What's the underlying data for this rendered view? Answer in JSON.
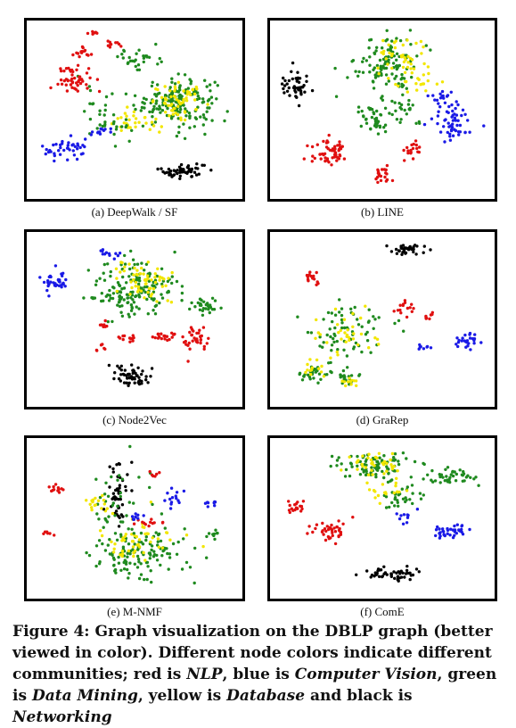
{
  "figure": {
    "caption_prefix": "Figure 4: ",
    "caption_main": "Graph visualization on the DBLP graph (better viewed in color). Different node colors indicate different communities; ",
    "legend_text": [
      {
        "text": "red is ",
        "italic": false
      },
      {
        "text": "NLP",
        "italic": true
      },
      {
        "text": ", blue is ",
        "italic": false
      },
      {
        "text": "Computer Vision",
        "italic": true
      },
      {
        "text": ", green is ",
        "italic": false
      },
      {
        "text": "Data Mining",
        "italic": true
      },
      {
        "text": ", yellow is ",
        "italic": false
      },
      {
        "text": "Database",
        "italic": true
      },
      {
        "text": " and black is ",
        "italic": false
      },
      {
        "text": "Networking",
        "italic": true
      }
    ]
  },
  "colors": {
    "NLP": "#e01010",
    "Computer Vision": "#1a1ae6",
    "Data Mining": "#1f8a1f",
    "Database": "#f2e600",
    "Networking": "#000000"
  },
  "chart_data": [
    {
      "type": "scatter",
      "caption": "(a) DeepWalk / SF",
      "xlim": [
        0,
        100
      ],
      "ylim": [
        0,
        100
      ],
      "clusters": [
        {
          "community": "Data Mining",
          "cx": 70,
          "cy": 55,
          "sx": 12,
          "sy": 9,
          "n": 170
        },
        {
          "community": "Database",
          "cx": 72,
          "cy": 55,
          "sx": 8,
          "sy": 6,
          "n": 60
        },
        {
          "community": "Database",
          "cx": 50,
          "cy": 42,
          "sx": 8,
          "sy": 4,
          "n": 30
        },
        {
          "community": "Data Mining",
          "cx": 52,
          "cy": 80,
          "sx": 6,
          "sy": 5,
          "n": 30
        },
        {
          "community": "Data Mining",
          "cx": 38,
          "cy": 48,
          "sx": 10,
          "sy": 10,
          "n": 35
        },
        {
          "community": "NLP",
          "cx": 21,
          "cy": 68,
          "sx": 5,
          "sy": 5,
          "n": 50
        },
        {
          "community": "NLP",
          "cx": 24,
          "cy": 83,
          "sx": 3,
          "sy": 2,
          "n": 15
        },
        {
          "community": "NLP",
          "cx": 40,
          "cy": 88,
          "sx": 3,
          "sy": 1.5,
          "n": 10
        },
        {
          "community": "NLP",
          "cx": 30,
          "cy": 95,
          "sx": 2,
          "sy": 1,
          "n": 6
        },
        {
          "community": "Computer Vision",
          "cx": 18,
          "cy": 27,
          "sx": 8,
          "sy": 4,
          "n": 40
        },
        {
          "community": "Computer Vision",
          "cx": 32,
          "cy": 37,
          "sx": 3,
          "sy": 2,
          "n": 12
        },
        {
          "community": "Networking",
          "cx": 73,
          "cy": 14,
          "sx": 7,
          "sy": 3,
          "n": 55
        }
      ]
    },
    {
      "type": "scatter",
      "caption": "(b) LINE",
      "xlim": [
        0,
        100
      ],
      "ylim": [
        0,
        100
      ],
      "clusters": [
        {
          "community": "Data Mining",
          "cx": 52,
          "cy": 78,
          "sx": 9,
          "sy": 11,
          "n": 110
        },
        {
          "community": "Database",
          "cx": 58,
          "cy": 80,
          "sx": 8,
          "sy": 9,
          "n": 40
        },
        {
          "community": "Data Mining",
          "cx": 46,
          "cy": 45,
          "sx": 4,
          "sy": 6,
          "n": 40
        },
        {
          "community": "Data Mining",
          "cx": 60,
          "cy": 52,
          "sx": 6,
          "sy": 8,
          "n": 25
        },
        {
          "community": "Database",
          "cx": 68,
          "cy": 68,
          "sx": 6,
          "sy": 6,
          "n": 20
        },
        {
          "community": "Computer Vision",
          "cx": 82,
          "cy": 42,
          "sx": 7,
          "sy": 8,
          "n": 55
        },
        {
          "community": "Computer Vision",
          "cx": 76,
          "cy": 58,
          "sx": 3,
          "sy": 3,
          "n": 15
        },
        {
          "community": "NLP",
          "cx": 26,
          "cy": 25,
          "sx": 5,
          "sy": 5,
          "n": 55
        },
        {
          "community": "NLP",
          "cx": 50,
          "cy": 12,
          "sx": 3,
          "sy": 2.5,
          "n": 22
        },
        {
          "community": "NLP",
          "cx": 64,
          "cy": 26,
          "sx": 3,
          "sy": 3,
          "n": 18
        },
        {
          "community": "Networking",
          "cx": 10,
          "cy": 65,
          "sx": 4,
          "sy": 5,
          "n": 45
        }
      ]
    },
    {
      "type": "scatter",
      "caption": "(c) Node2Vec",
      "xlim": [
        0,
        100
      ],
      "ylim": [
        0,
        100
      ],
      "clusters": [
        {
          "community": "Data Mining",
          "cx": 50,
          "cy": 68,
          "sx": 13,
          "sy": 11,
          "n": 170
        },
        {
          "community": "Database",
          "cx": 54,
          "cy": 72,
          "sx": 9,
          "sy": 8,
          "n": 60
        },
        {
          "community": "Data Mining",
          "cx": 85,
          "cy": 58,
          "sx": 4,
          "sy": 3,
          "n": 30
        },
        {
          "community": "NLP",
          "cx": 80,
          "cy": 38,
          "sx": 5,
          "sy": 5,
          "n": 35
        },
        {
          "community": "NLP",
          "cx": 64,
          "cy": 40,
          "sx": 3,
          "sy": 2,
          "n": 20
        },
        {
          "community": "NLP",
          "cx": 47,
          "cy": 39,
          "sx": 2.5,
          "sy": 1.5,
          "n": 12
        },
        {
          "community": "NLP",
          "cx": 35,
          "cy": 46,
          "sx": 2,
          "sy": 2,
          "n": 8
        },
        {
          "community": "NLP",
          "cx": 33,
          "cy": 33,
          "sx": 2,
          "sy": 1.5,
          "n": 7
        },
        {
          "community": "Computer Vision",
          "cx": 12,
          "cy": 72,
          "sx": 5,
          "sy": 4,
          "n": 35
        },
        {
          "community": "Computer Vision",
          "cx": 38,
          "cy": 90,
          "sx": 3,
          "sy": 2,
          "n": 12
        },
        {
          "community": "Networking",
          "cx": 48,
          "cy": 16,
          "sx": 6,
          "sy": 4,
          "n": 55
        }
      ]
    },
    {
      "type": "scatter",
      "caption": "(d) GraRep",
      "xlim": [
        0,
        100
      ],
      "ylim": [
        0,
        100
      ],
      "clusters": [
        {
          "community": "Networking",
          "cx": 60,
          "cy": 92,
          "sx": 6,
          "sy": 2,
          "n": 35
        },
        {
          "community": "Data Mining",
          "cx": 33,
          "cy": 42,
          "sx": 12,
          "sy": 12,
          "n": 70
        },
        {
          "community": "Database",
          "cx": 35,
          "cy": 40,
          "sx": 10,
          "sy": 10,
          "n": 35
        },
        {
          "community": "Data Mining",
          "cx": 18,
          "cy": 17,
          "sx": 4,
          "sy": 3,
          "n": 30
        },
        {
          "community": "Database",
          "cx": 18,
          "cy": 20,
          "sx": 4,
          "sy": 3,
          "n": 12
        },
        {
          "community": "Data Mining",
          "cx": 34,
          "cy": 15,
          "sx": 3,
          "sy": 3,
          "n": 20
        },
        {
          "community": "Database",
          "cx": 34,
          "cy": 12,
          "sx": 2,
          "sy": 2,
          "n": 10
        },
        {
          "community": "NLP",
          "cx": 60,
          "cy": 57,
          "sx": 3,
          "sy": 3,
          "n": 15
        },
        {
          "community": "NLP",
          "cx": 72,
          "cy": 52,
          "sx": 2,
          "sy": 2,
          "n": 8
        },
        {
          "community": "NLP",
          "cx": 18,
          "cy": 75,
          "sx": 3,
          "sy": 4,
          "n": 14
        },
        {
          "community": "Computer Vision",
          "cx": 89,
          "cy": 37,
          "sx": 4,
          "sy": 3,
          "n": 25
        },
        {
          "community": "Computer Vision",
          "cx": 70,
          "cy": 34,
          "sx": 2,
          "sy": 1.5,
          "n": 8
        }
      ]
    },
    {
      "type": "scatter",
      "caption": "(e) M-NMF",
      "xlim": [
        0,
        100
      ],
      "ylim": [
        0,
        100
      ],
      "clusters": [
        {
          "community": "Data Mining",
          "cx": 52,
          "cy": 28,
          "sx": 14,
          "sy": 12,
          "n": 130
        },
        {
          "community": "Database",
          "cx": 52,
          "cy": 35,
          "sx": 15,
          "sy": 10,
          "n": 50
        },
        {
          "community": "Networking",
          "cx": 42,
          "cy": 66,
          "sx": 3,
          "sy": 14,
          "n": 45
        },
        {
          "community": "Data Mining",
          "cx": 40,
          "cy": 62,
          "sx": 10,
          "sy": 14,
          "n": 35
        },
        {
          "community": "Database",
          "cx": 30,
          "cy": 60,
          "sx": 4,
          "sy": 4,
          "n": 18
        },
        {
          "community": "NLP",
          "cx": 12,
          "cy": 70,
          "sx": 2.5,
          "sy": 2.5,
          "n": 12
        },
        {
          "community": "NLP",
          "cx": 57,
          "cy": 47,
          "sx": 5,
          "sy": 2,
          "n": 12
        },
        {
          "community": "NLP",
          "cx": 60,
          "cy": 78,
          "sx": 2,
          "sy": 2,
          "n": 6
        },
        {
          "community": "NLP",
          "cx": 8,
          "cy": 40,
          "sx": 2,
          "sy": 2,
          "n": 6
        },
        {
          "community": "Computer Vision",
          "cx": 70,
          "cy": 62,
          "sx": 3,
          "sy": 4,
          "n": 14
        },
        {
          "community": "Computer Vision",
          "cx": 87,
          "cy": 60,
          "sx": 2,
          "sy": 2,
          "n": 8
        },
        {
          "community": "Computer Vision",
          "cx": 50,
          "cy": 52,
          "sx": 2,
          "sy": 2,
          "n": 8
        },
        {
          "community": "Data Mining",
          "cx": 88,
          "cy": 40,
          "sx": 2,
          "sy": 2,
          "n": 10
        }
      ]
    },
    {
      "type": "scatter",
      "caption": "(f) ComE",
      "xlim": [
        0,
        100
      ],
      "ylim": [
        0,
        100
      ],
      "clusters": [
        {
          "community": "Data Mining",
          "cx": 45,
          "cy": 85,
          "sx": 12,
          "sy": 6,
          "n": 90
        },
        {
          "community": "Database",
          "cx": 45,
          "cy": 86,
          "sx": 8,
          "sy": 5,
          "n": 35
        },
        {
          "community": "Data Mining",
          "cx": 82,
          "cy": 77,
          "sx": 7,
          "sy": 3,
          "n": 40
        },
        {
          "community": "Data Mining",
          "cx": 58,
          "cy": 65,
          "sx": 6,
          "sy": 5,
          "n": 30
        },
        {
          "community": "Database",
          "cx": 52,
          "cy": 70,
          "sx": 6,
          "sy": 5,
          "n": 20
        },
        {
          "community": "Computer Vision",
          "cx": 82,
          "cy": 42,
          "sx": 6,
          "sy": 3,
          "n": 40
        },
        {
          "community": "Computer Vision",
          "cx": 60,
          "cy": 52,
          "sx": 3,
          "sy": 2,
          "n": 10
        },
        {
          "community": "NLP",
          "cx": 25,
          "cy": 42,
          "sx": 5,
          "sy": 4,
          "n": 40
        },
        {
          "community": "NLP",
          "cx": 10,
          "cy": 58,
          "sx": 3,
          "sy": 3,
          "n": 18
        },
        {
          "community": "Networking",
          "cx": 55,
          "cy": 14,
          "sx": 8,
          "sy": 3,
          "n": 50
        }
      ]
    }
  ]
}
